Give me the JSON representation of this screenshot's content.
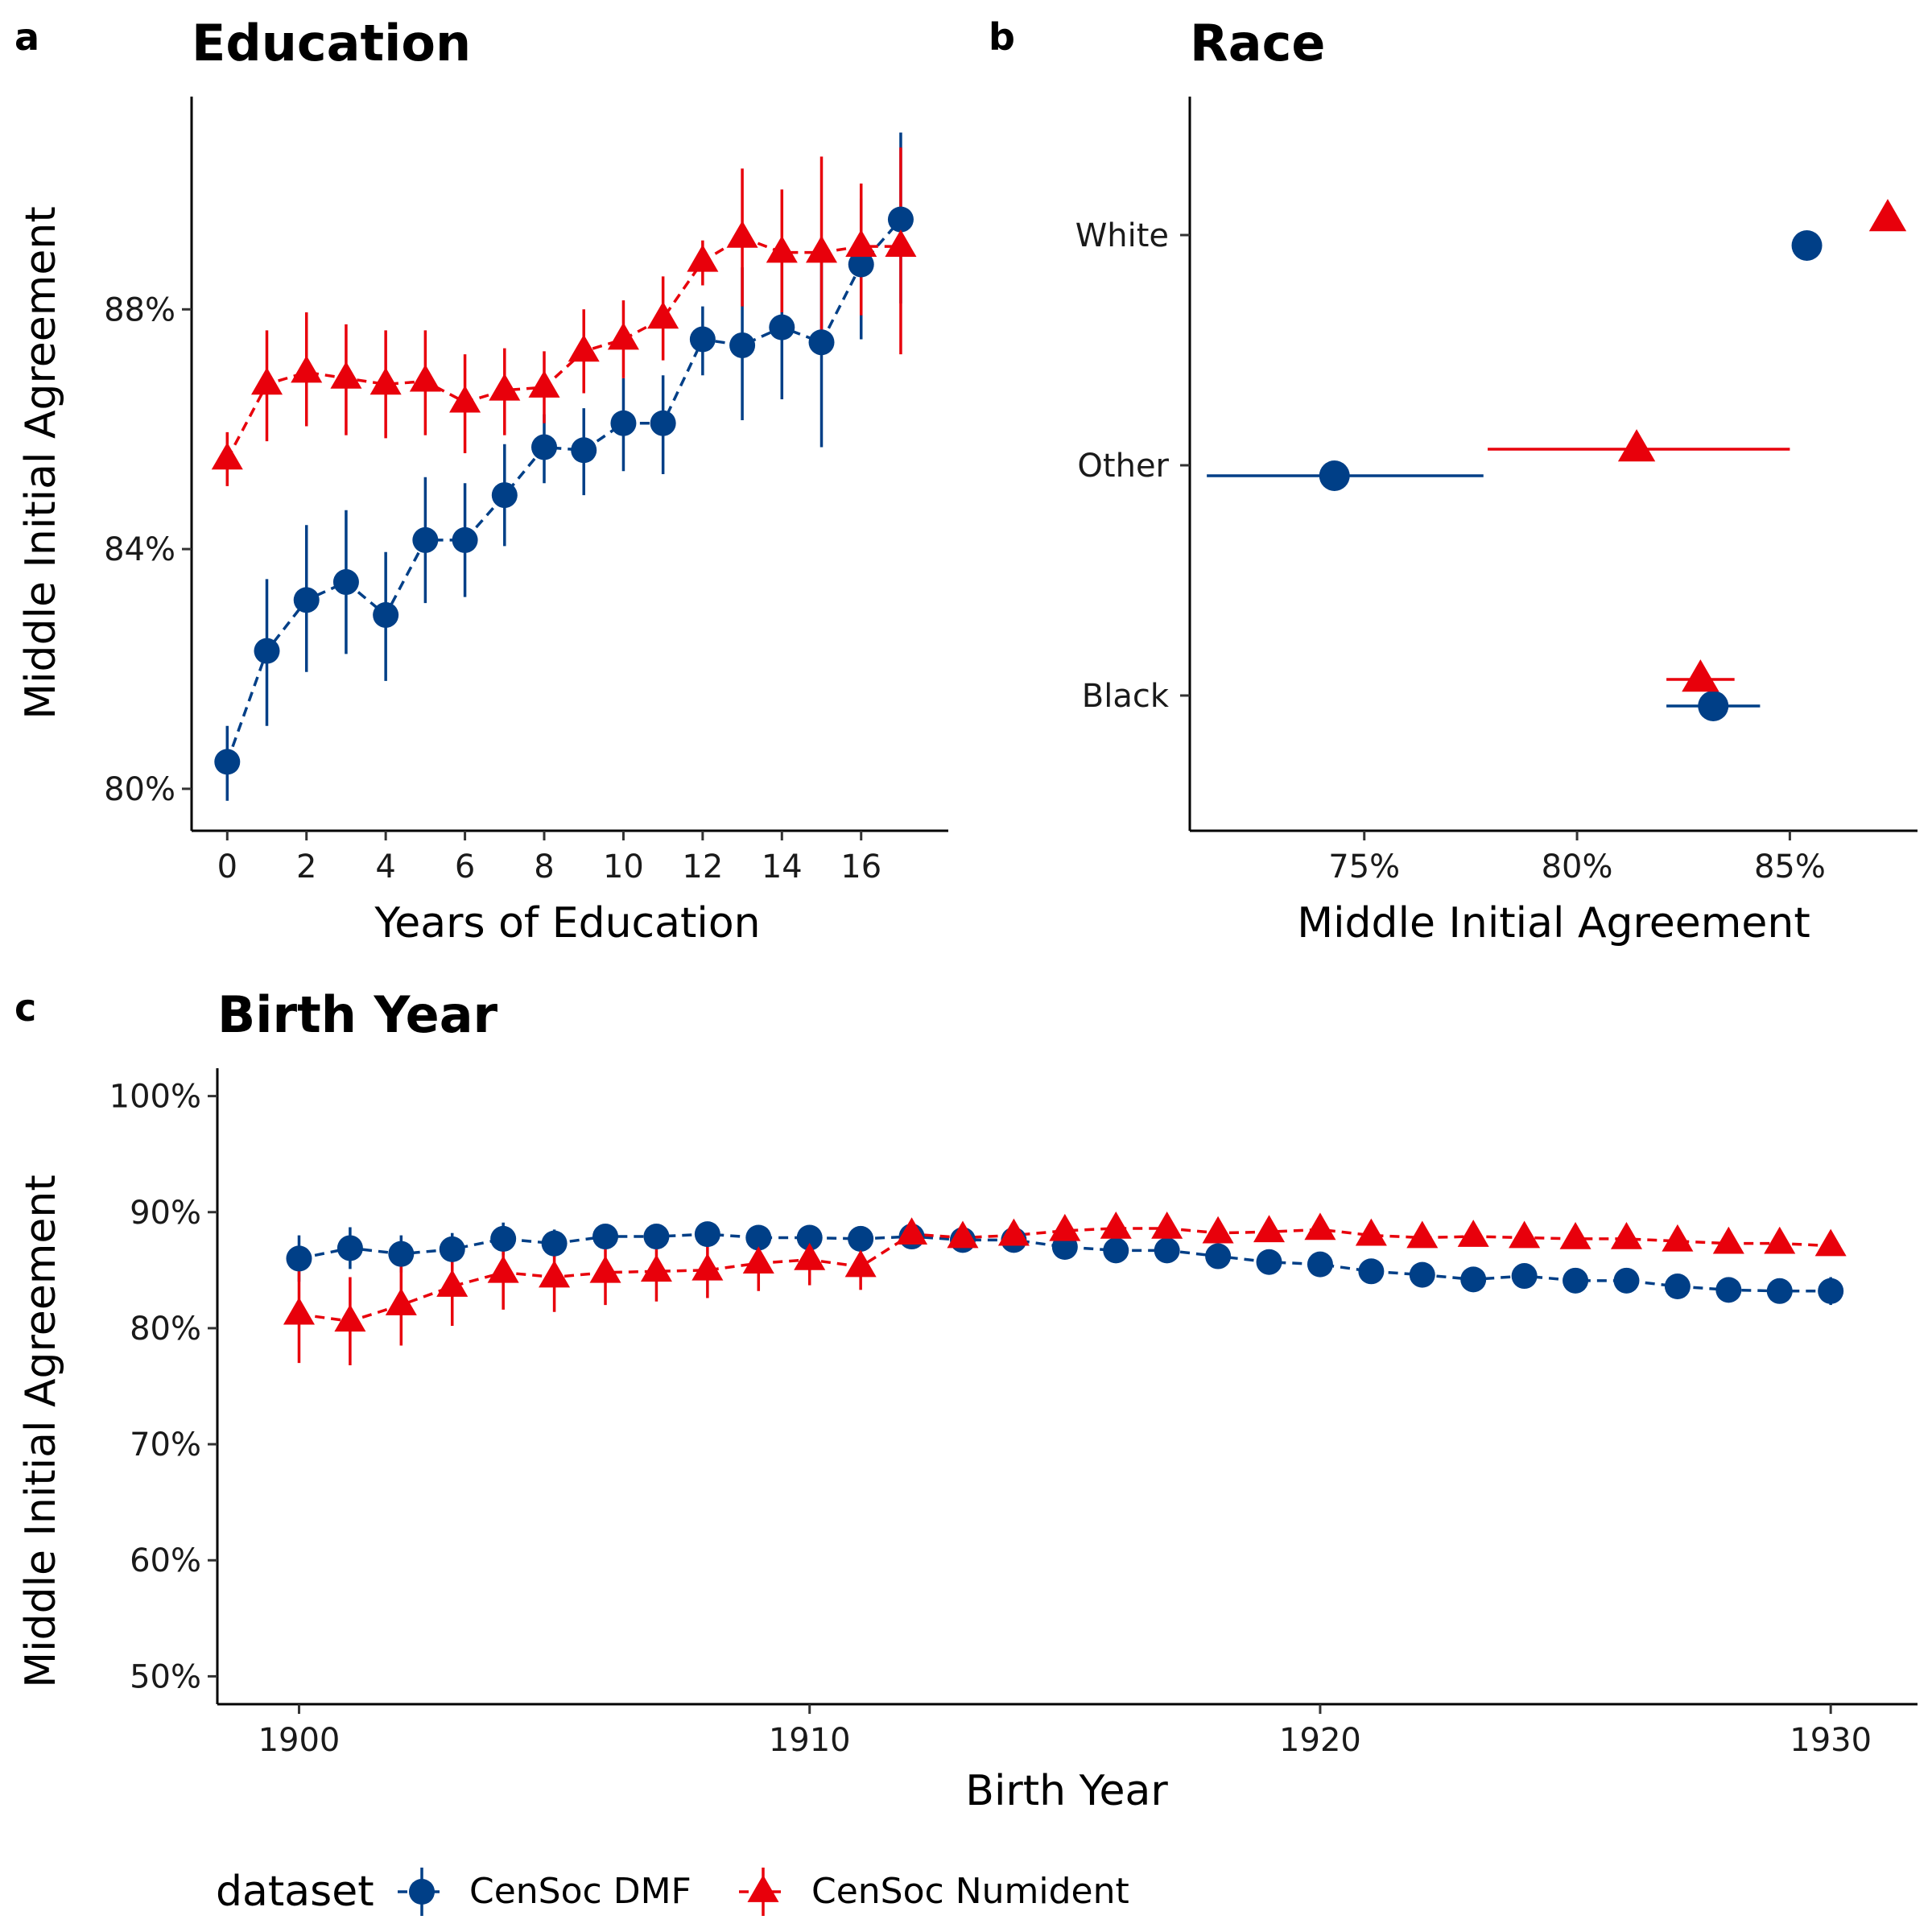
{
  "colors": {
    "dmf": "#003f87",
    "numident": "#e8000b"
  },
  "legend": {
    "title": "dataset",
    "items": [
      {
        "label": "CenSoc DMF",
        "shape": "circle",
        "color_key": "dmf"
      },
      {
        "label": "CenSoc Numident",
        "shape": "triangle",
        "color_key": "numident"
      }
    ]
  },
  "chart_data": [
    {
      "panel": "a",
      "title": "Education",
      "type": "line",
      "xlabel": "Years of Education",
      "ylabel": "Middle Initial Agreement",
      "xlim": [
        -0.9,
        18.2
      ],
      "ylim": [
        79.3,
        91.55
      ],
      "xticks": [
        0,
        2,
        4,
        6,
        8,
        10,
        12,
        14,
        16
      ],
      "xtick_labels": [
        "0",
        "2",
        "4",
        "6",
        "8",
        "10",
        "12",
        "14",
        "16"
      ],
      "yticks": [
        80,
        84,
        88
      ],
      "ytick_labels": [
        "80%",
        "84%",
        "88%"
      ],
      "series": [
        {
          "name": "CenSoc DMF",
          "color_key": "dmf",
          "shape": "circle",
          "x": [
            0,
            1,
            2,
            3,
            4,
            5,
            6,
            7,
            8,
            9,
            10,
            11,
            12,
            13,
            14,
            15,
            16,
            17
          ],
          "y": [
            80.45,
            82.3,
            83.15,
            83.45,
            82.9,
            84.15,
            84.15,
            84.9,
            85.7,
            85.65,
            86.1,
            86.1,
            87.5,
            87.4,
            87.7,
            87.45,
            88.75,
            89.5
          ],
          "lo": [
            79.8,
            81.05,
            81.95,
            82.25,
            81.8,
            83.1,
            83.2,
            84.05,
            85.1,
            84.9,
            85.3,
            85.25,
            86.9,
            86.15,
            86.5,
            85.7,
            87.5,
            88.1
          ],
          "hi": [
            81.05,
            83.5,
            84.4,
            84.65,
            83.95,
            85.2,
            85.1,
            85.75,
            86.25,
            86.35,
            86.85,
            86.9,
            88.05,
            88.7,
            88.95,
            89.2,
            89.85,
            90.95
          ]
        },
        {
          "name": "CenSoc Numident",
          "color_key": "numident",
          "shape": "triangle",
          "x": [
            0,
            1,
            2,
            3,
            4,
            5,
            6,
            7,
            8,
            9,
            10,
            11,
            12,
            13,
            14,
            15,
            16,
            17
          ],
          "y": [
            85.5,
            86.75,
            86.95,
            86.85,
            86.75,
            86.8,
            86.45,
            86.65,
            86.7,
            87.3,
            87.5,
            87.85,
            88.8,
            89.2,
            88.95,
            88.95,
            89.05,
            89.05
          ],
          "lo": [
            85.05,
            85.8,
            86.05,
            85.9,
            85.85,
            85.9,
            85.6,
            85.9,
            86.1,
            86.6,
            86.85,
            87.15,
            88.4,
            88.05,
            87.95,
            87.55,
            87.9,
            87.25
          ],
          "hi": [
            85.95,
            87.65,
            87.95,
            87.75,
            87.65,
            87.65,
            87.25,
            87.35,
            87.3,
            88.0,
            88.15,
            88.55,
            89.15,
            90.35,
            90.0,
            90.55,
            90.1,
            90.7
          ]
        }
      ]
    },
    {
      "panel": "b",
      "title": "Race",
      "type": "scatter",
      "xlabel": "Middle Initial Agreement",
      "ylabel": "",
      "categories": [
        "White",
        "Other",
        "Black"
      ],
      "xlim": [
        70.9,
        88.0
      ],
      "xticks": [
        75,
        80,
        85
      ],
      "xtick_labels": [
        "75%",
        "80%",
        "85%"
      ],
      "series": [
        {
          "name": "CenSoc DMF",
          "color_key": "dmf",
          "shape": "circle",
          "x": [
            85.4,
            74.3,
            83.2
          ],
          "lo": [
            null,
            71.3,
            82.1
          ],
          "hi": [
            null,
            77.8,
            84.3
          ]
        },
        {
          "name": "CenSoc Numident",
          "color_key": "numident",
          "shape": "triangle",
          "x": [
            87.3,
            81.4,
            82.9
          ],
          "lo": [
            null,
            77.9,
            82.1
          ],
          "hi": [
            null,
            85.0,
            83.7
          ]
        }
      ]
    },
    {
      "panel": "c",
      "title": "Birth Year",
      "type": "line",
      "xlabel": "Birth Year",
      "ylabel": "Middle Initial Agreement",
      "xlim": [
        1898.4,
        1931.7
      ],
      "ylim": [
        47.6,
        102.4
      ],
      "xticks": [
        1900,
        1910,
        1920,
        1930
      ],
      "xtick_labels": [
        "1900",
        "1910",
        "1920",
        "1930"
      ],
      "yticks": [
        50,
        60,
        70,
        80,
        90,
        100
      ],
      "ytick_labels": [
        "50%",
        "60%",
        "70%",
        "80%",
        "90%",
        "100%"
      ],
      "series": [
        {
          "name": "CenSoc DMF",
          "color_key": "dmf",
          "shape": "circle",
          "x": [
            1900,
            1901,
            1902,
            1903,
            1904,
            1905,
            1906,
            1907,
            1908,
            1909,
            1910,
            1911,
            1912,
            1913,
            1914,
            1915,
            1916,
            1917,
            1918,
            1919,
            1920,
            1921,
            1922,
            1923,
            1924,
            1925,
            1926,
            1927,
            1928,
            1929,
            1930
          ],
          "y": [
            86.0,
            86.9,
            86.4,
            86.8,
            87.7,
            87.3,
            87.9,
            87.9,
            88.1,
            87.8,
            87.8,
            87.7,
            87.9,
            87.6,
            87.6,
            87.0,
            86.7,
            86.7,
            86.2,
            85.7,
            85.5,
            84.9,
            84.6,
            84.2,
            84.5,
            84.1,
            84.1,
            83.6,
            83.3,
            83.2,
            83.2
          ],
          "lo": [
            84.0,
            85.1,
            84.8,
            85.4,
            86.3,
            86.1,
            86.9,
            87.1,
            87.3,
            87.1,
            87.2,
            87.1,
            87.5,
            87.2,
            87.2,
            86.6,
            86.3,
            86.3,
            85.8,
            85.3,
            85.1,
            84.5,
            84.2,
            83.8,
            84.1,
            83.7,
            83.7,
            83.0,
            82.5,
            82.2,
            82.0
          ],
          "hi": [
            88.0,
            88.7,
            88.0,
            88.2,
            89.1,
            88.5,
            88.9,
            88.7,
            88.9,
            88.5,
            88.4,
            88.3,
            88.3,
            88.0,
            88.0,
            87.4,
            87.1,
            87.1,
            86.6,
            86.1,
            85.9,
            85.3,
            85.0,
            84.6,
            84.9,
            84.5,
            84.5,
            84.2,
            84.1,
            84.2,
            84.4
          ]
        },
        {
          "name": "CenSoc Numident",
          "color_key": "numident",
          "shape": "triangle",
          "x": [
            1900,
            1901,
            1902,
            1903,
            1904,
            1905,
            1906,
            1907,
            1908,
            1909,
            1910,
            1911,
            1912,
            1913,
            1914,
            1915,
            1916,
            1917,
            1918,
            1919,
            1920,
            1921,
            1922,
            1923,
            1924,
            1925,
            1926,
            1927,
            1928,
            1929,
            1930
          ],
          "y": [
            81.2,
            80.6,
            82.0,
            83.6,
            84.8,
            84.4,
            84.8,
            84.9,
            85.0,
            85.6,
            85.9,
            85.3,
            88.1,
            87.8,
            88.0,
            88.4,
            88.6,
            88.6,
            88.2,
            88.3,
            88.5,
            88.0,
            87.8,
            87.9,
            87.8,
            87.7,
            87.7,
            87.5,
            87.3,
            87.3,
            87.1
          ],
          "lo": [
            77.0,
            76.8,
            78.5,
            80.2,
            81.6,
            81.4,
            82.0,
            82.3,
            82.6,
            83.2,
            83.7,
            83.3,
            87.5,
            87.2,
            87.4,
            87.8,
            88.0,
            88.0,
            87.6,
            87.7,
            87.9,
            87.4,
            87.2,
            87.3,
            87.2,
            87.1,
            87.1,
            86.9,
            86.7,
            86.7,
            86.5
          ],
          "hi": [
            85.4,
            84.4,
            85.5,
            87.0,
            88.0,
            87.4,
            87.6,
            87.5,
            87.4,
            88.0,
            88.1,
            87.3,
            88.7,
            88.4,
            88.6,
            89.0,
            89.2,
            89.2,
            88.8,
            88.9,
            89.1,
            88.6,
            88.4,
            88.5,
            88.4,
            88.3,
            88.3,
            88.1,
            87.9,
            87.9,
            87.7
          ]
        }
      ]
    }
  ]
}
